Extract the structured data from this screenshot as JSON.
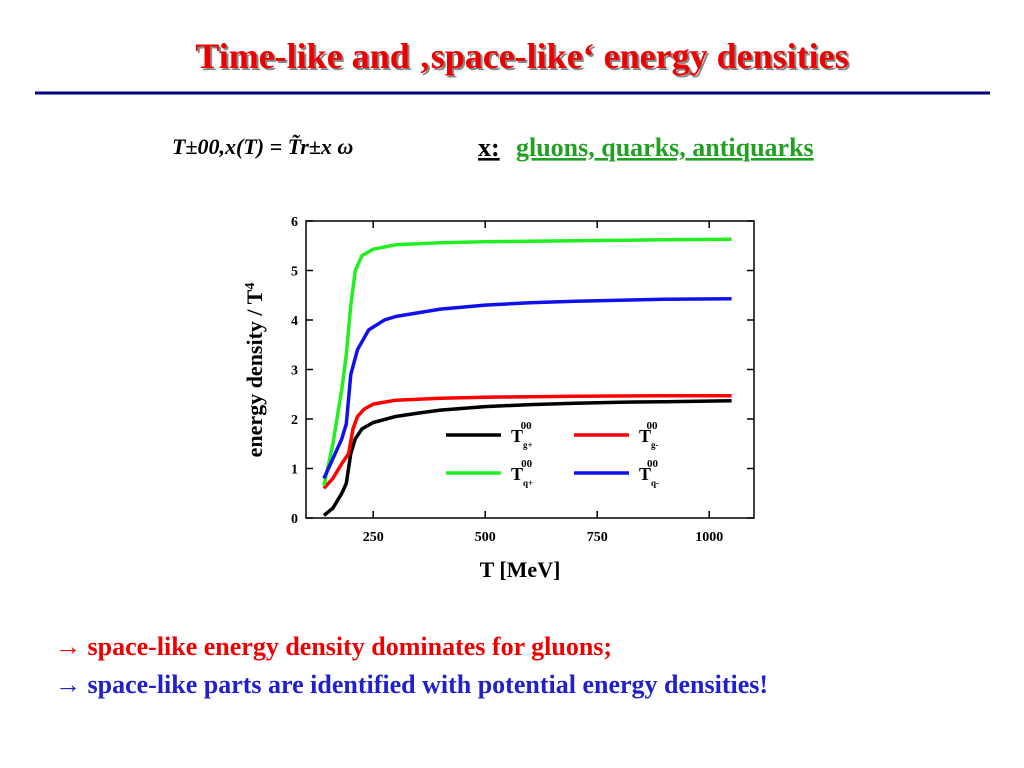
{
  "slide": {
    "title": "Time-like and ‚space-like‘ energy densities",
    "formula": "T±00,x(T) = T̃r±x ω",
    "x_label": "x:",
    "x_text": "gluons, quarks, antiquarks",
    "bullets": [
      "→ space-like energy density dominates for gluons;",
      "→ space-like parts are identified with potential energy densities!"
    ]
  },
  "chart_data": {
    "type": "line",
    "x_label": "T [MeV]",
    "y_label": "energy density / T",
    "y_label_superscript": "4",
    "xlim": [
      100,
      1100
    ],
    "xticks": [
      250,
      500,
      750,
      1000
    ],
    "ylim": [
      0,
      6
    ],
    "yticks": [
      0,
      1,
      2,
      3,
      4,
      5,
      6
    ],
    "series": [
      {
        "name": "T",
        "subscript": "g+",
        "superscript": "00",
        "color": "#000000",
        "x": [
          140,
          160,
          180,
          190,
          200,
          210,
          225,
          250,
          300,
          350,
          400,
          500,
          600,
          700,
          800,
          900,
          1050
        ],
        "values": [
          0.05,
          0.2,
          0.5,
          0.7,
          1.3,
          1.6,
          1.8,
          1.93,
          2.05,
          2.12,
          2.18,
          2.25,
          2.29,
          2.32,
          2.34,
          2.35,
          2.37
        ]
      },
      {
        "name": "T",
        "subscript": "g-",
        "superscript": "00",
        "color": "#ff0000",
        "x": [
          140,
          160,
          180,
          195,
          205,
          215,
          230,
          250,
          300,
          400,
          500,
          700,
          900,
          1050
        ],
        "values": [
          0.6,
          0.8,
          1.1,
          1.3,
          1.8,
          2.05,
          2.2,
          2.3,
          2.38,
          2.42,
          2.44,
          2.46,
          2.47,
          2.47
        ]
      },
      {
        "name": "T",
        "subscript": "q+",
        "superscript": "00",
        "color": "#22ee22",
        "x": [
          140,
          160,
          180,
          190,
          200,
          210,
          225,
          250,
          300,
          400,
          500,
          700,
          900,
          1050
        ],
        "values": [
          0.65,
          1.5,
          2.6,
          3.3,
          4.3,
          5.0,
          5.3,
          5.43,
          5.52,
          5.56,
          5.58,
          5.6,
          5.62,
          5.63
        ]
      },
      {
        "name": "T",
        "subscript": "q-",
        "superscript": "00",
        "color": "#1010ee",
        "x": [
          140,
          160,
          180,
          190,
          200,
          215,
          240,
          275,
          300,
          400,
          500,
          600,
          700,
          800,
          900,
          1050
        ],
        "values": [
          0.8,
          1.2,
          1.6,
          1.9,
          2.9,
          3.4,
          3.8,
          4.0,
          4.07,
          4.22,
          4.3,
          4.35,
          4.38,
          4.4,
          4.42,
          4.43
        ]
      }
    ]
  }
}
